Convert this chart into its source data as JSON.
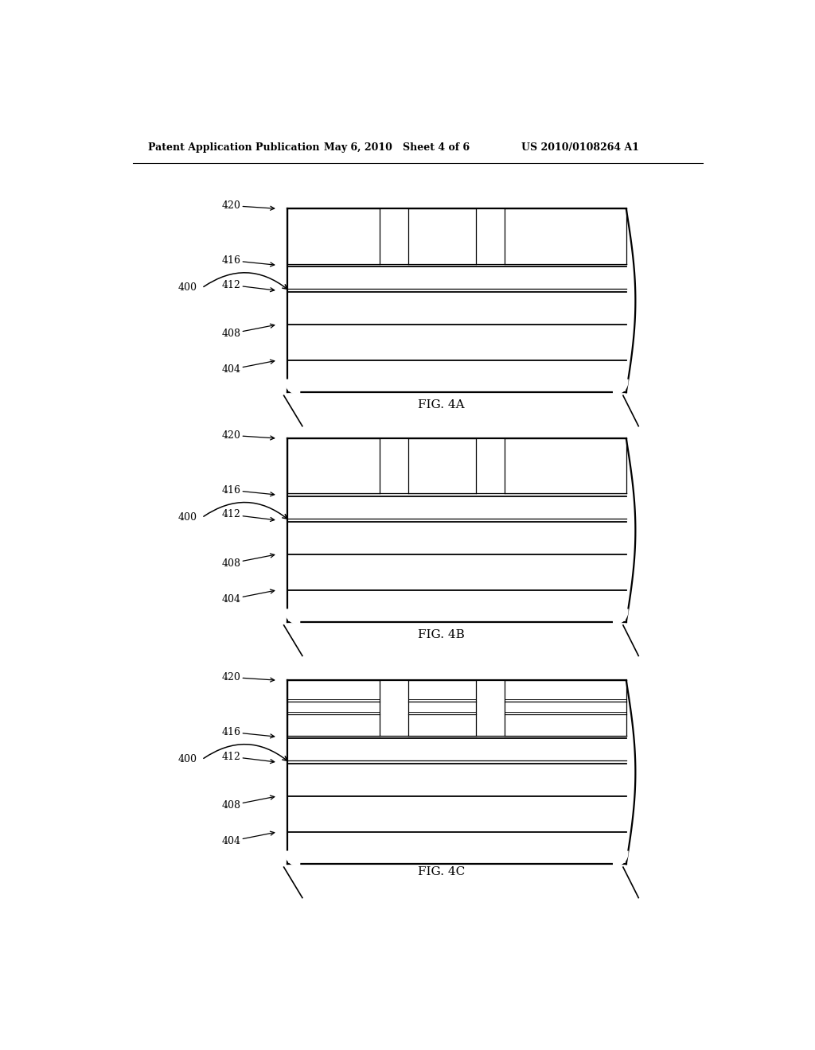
{
  "header_left": "Patent Application Publication",
  "header_mid": "May 6, 2010   Sheet 4 of 6",
  "header_right": "US 2010/0108264 A1",
  "bg_color": "#ffffff",
  "line_color": "#000000",
  "figures": [
    {
      "name": "FIG. 4A",
      "fig4b_style": false,
      "has_inner_block_lines": false
    },
    {
      "name": "FIG. 4B",
      "fig4b_style": true,
      "has_inner_block_lines": false
    },
    {
      "name": "FIG. 4C",
      "fig4b_style": true,
      "has_inner_block_lines": true
    }
  ]
}
